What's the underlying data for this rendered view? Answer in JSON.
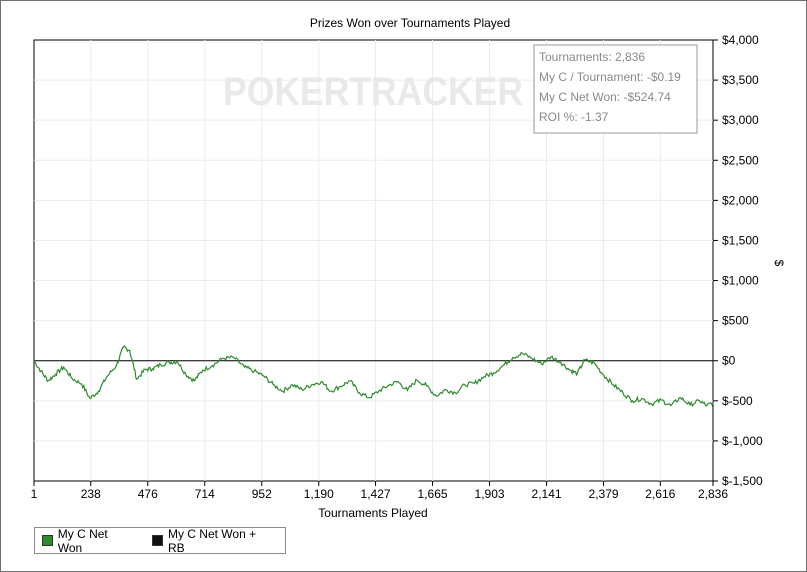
{
  "chart_data": {
    "type": "line",
    "title": "Prizes Won over Tournaments Played",
    "xlabel": "Tournaments Played",
    "ylabel": "$",
    "xlim": [
      1,
      2836
    ],
    "ylim": [
      -1500,
      4000
    ],
    "x_ticks": [
      "1",
      "238",
      "476",
      "714",
      "952",
      "1,190",
      "1,427",
      "1,665",
      "1,903",
      "2,141",
      "2,379",
      "2,616",
      "2,836"
    ],
    "y_ticks": [
      "$4,000",
      "$3,500",
      "$3,000",
      "$2,500",
      "$2,000",
      "$1,500",
      "$1,000",
      "$500",
      "$0",
      "$-500",
      "$-1,000",
      "$-1,500"
    ],
    "grid": true,
    "legend_position": "bottom-left",
    "watermark": "POKERTRACKER",
    "stats": [
      "Tournaments: 2,836",
      "My C / Tournament: -$0.19",
      "My C Net Won: -$524.74",
      "ROI %: -1.37"
    ],
    "series": [
      {
        "name": "My C Net Won",
        "color": "#2e8b2e",
        "points": [
          [
            1,
            0
          ],
          [
            30,
            -130
          ],
          [
            60,
            -250
          ],
          [
            90,
            -170
          ],
          [
            125,
            -80
          ],
          [
            160,
            -220
          ],
          [
            200,
            -290
          ],
          [
            235,
            -470
          ],
          [
            270,
            -380
          ],
          [
            305,
            -200
          ],
          [
            345,
            -60
          ],
          [
            375,
            170
          ],
          [
            400,
            130
          ],
          [
            430,
            -230
          ],
          [
            465,
            -110
          ],
          [
            495,
            -100
          ],
          [
            530,
            -50
          ],
          [
            565,
            -20
          ],
          [
            600,
            -10
          ],
          [
            635,
            -170
          ],
          [
            670,
            -250
          ],
          [
            705,
            -120
          ],
          [
            745,
            -60
          ],
          [
            790,
            30
          ],
          [
            835,
            40
          ],
          [
            880,
            -80
          ],
          [
            920,
            -130
          ],
          [
            960,
            -190
          ],
          [
            1000,
            -300
          ],
          [
            1040,
            -380
          ],
          [
            1080,
            -300
          ],
          [
            1120,
            -360
          ],
          [
            1160,
            -300
          ],
          [
            1200,
            -260
          ],
          [
            1240,
            -380
          ],
          [
            1280,
            -320
          ],
          [
            1320,
            -250
          ],
          [
            1360,
            -400
          ],
          [
            1400,
            -460
          ],
          [
            1440,
            -380
          ],
          [
            1480,
            -310
          ],
          [
            1520,
            -260
          ],
          [
            1560,
            -370
          ],
          [
            1600,
            -240
          ],
          [
            1640,
            -310
          ],
          [
            1680,
            -440
          ],
          [
            1720,
            -360
          ],
          [
            1760,
            -400
          ],
          [
            1800,
            -300
          ],
          [
            1840,
            -280
          ],
          [
            1880,
            -200
          ],
          [
            1920,
            -150
          ],
          [
            1960,
            -60
          ],
          [
            2000,
            40
          ],
          [
            2040,
            90
          ],
          [
            2080,
            30
          ],
          [
            2120,
            -40
          ],
          [
            2160,
            50
          ],
          [
            2200,
            -20
          ],
          [
            2240,
            -120
          ],
          [
            2270,
            -160
          ],
          [
            2300,
            10
          ],
          [
            2340,
            -30
          ],
          [
            2380,
            -180
          ],
          [
            2420,
            -300
          ],
          [
            2460,
            -400
          ],
          [
            2500,
            -500
          ],
          [
            2540,
            -470
          ],
          [
            2580,
            -540
          ],
          [
            2620,
            -490
          ],
          [
            2660,
            -560
          ],
          [
            2700,
            -460
          ],
          [
            2740,
            -550
          ],
          [
            2780,
            -500
          ],
          [
            2810,
            -560
          ],
          [
            2836,
            -525
          ]
        ]
      },
      {
        "name": "My C Net Won + RB",
        "color": "#111111",
        "points": []
      }
    ]
  }
}
